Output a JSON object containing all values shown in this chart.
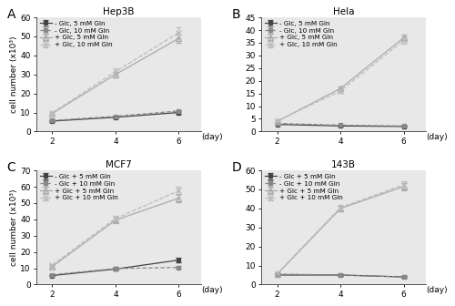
{
  "subplots": [
    {
      "label": "A",
      "title": "Hep3B",
      "ylim": [
        0,
        60
      ],
      "yticks": [
        0,
        10,
        20,
        30,
        40,
        50,
        60
      ],
      "series": [
        {
          "label": "- Glc, 5 mM Gln",
          "marker": "s",
          "color": "#444444",
          "linestyle": "-",
          "x": [
            2,
            4,
            6
          ],
          "y": [
            5.5,
            7.5,
            10.0
          ],
          "yerr": [
            0.4,
            0.5,
            0.7
          ]
        },
        {
          "label": "- Glc, 10 mM Gln",
          "marker": "s",
          "color": "#888888",
          "linestyle": "--",
          "x": [
            2,
            4,
            6
          ],
          "y": [
            5.8,
            8.0,
            10.8
          ],
          "yerr": [
            0.4,
            0.5,
            0.5
          ]
        },
        {
          "label": "+ Glc, 5 mM Gln",
          "marker": "^",
          "color": "#aaaaaa",
          "linestyle": "-",
          "x": [
            2,
            4,
            6
          ],
          "y": [
            9.5,
            30.0,
            49.0
          ],
          "yerr": [
            0.6,
            1.5,
            2.5
          ]
        },
        {
          "label": "+ Glc, 10 mM Gln",
          "marker": "x",
          "color": "#bbbbbb",
          "linestyle": "--",
          "x": [
            2,
            4,
            6
          ],
          "y": [
            9.8,
            31.5,
            52.0
          ],
          "yerr": [
            0.6,
            1.5,
            3.0
          ]
        }
      ]
    },
    {
      "label": "B",
      "title": "Hela",
      "ylim": [
        0,
        45
      ],
      "yticks": [
        0,
        5,
        10,
        15,
        20,
        25,
        30,
        35,
        40,
        45
      ],
      "series": [
        {
          "label": "- Glc, 5 mM Gln",
          "marker": "s",
          "color": "#444444",
          "linestyle": "-",
          "x": [
            2,
            4,
            6
          ],
          "y": [
            2.8,
            2.2,
            2.0
          ],
          "yerr": [
            0.2,
            0.2,
            0.2
          ]
        },
        {
          "label": "- Glc, 10 mM Gln",
          "marker": "s",
          "color": "#888888",
          "linestyle": "--",
          "x": [
            2,
            4,
            6
          ],
          "y": [
            3.2,
            2.5,
            2.2
          ],
          "yerr": [
            0.2,
            0.2,
            0.2
          ]
        },
        {
          "label": "+ Glc, 5 mM Gln",
          "marker": "^",
          "color": "#aaaaaa",
          "linestyle": "-",
          "x": [
            2,
            4,
            6
          ],
          "y": [
            4.0,
            17.0,
            37.0
          ],
          "yerr": [
            0.3,
            0.8,
            1.2
          ]
        },
        {
          "label": "+ Glc, 10 mM Gln",
          "marker": "x",
          "color": "#bbbbbb",
          "linestyle": "--",
          "x": [
            2,
            4,
            6
          ],
          "y": [
            4.2,
            16.0,
            36.0
          ],
          "yerr": [
            0.3,
            0.8,
            1.5
          ]
        }
      ]
    },
    {
      "label": "C",
      "title": "MCF7",
      "ylim": [
        0,
        70
      ],
      "yticks": [
        0,
        10,
        20,
        30,
        40,
        50,
        60,
        70
      ],
      "series": [
        {
          "label": "- Glc + 5 mM Gln",
          "marker": "s",
          "color": "#444444",
          "linestyle": "-",
          "x": [
            2,
            4,
            6
          ],
          "y": [
            5.5,
            9.5,
            15.0
          ],
          "yerr": [
            0.5,
            0.8,
            1.2
          ]
        },
        {
          "label": "- Glc + 10 mM Gln",
          "marker": "s",
          "color": "#888888",
          "linestyle": "--",
          "x": [
            2,
            4,
            6
          ],
          "y": [
            6.0,
            9.8,
            10.5
          ],
          "yerr": [
            0.5,
            0.8,
            0.8
          ]
        },
        {
          "label": "+ Glc + 5 mM Gln",
          "marker": "^",
          "color": "#aaaaaa",
          "linestyle": "-",
          "x": [
            2,
            4,
            6
          ],
          "y": [
            11.0,
            39.5,
            53.0
          ],
          "yerr": [
            0.8,
            1.5,
            2.5
          ]
        },
        {
          "label": "+ Glc + 10 mM Gln",
          "marker": "x",
          "color": "#bbbbbb",
          "linestyle": "--",
          "x": [
            2,
            4,
            6
          ],
          "y": [
            12.0,
            40.5,
            57.5
          ],
          "yerr": [
            0.8,
            1.5,
            2.5
          ]
        }
      ]
    },
    {
      "label": "D",
      "title": "143B",
      "ylim": [
        0,
        60
      ],
      "yticks": [
        0,
        10,
        20,
        30,
        40,
        50,
        60
      ],
      "series": [
        {
          "label": "- Glc + 5 mM Gln",
          "marker": "s",
          "color": "#444444",
          "linestyle": "-",
          "x": [
            2,
            4,
            6
          ],
          "y": [
            5.0,
            5.0,
            4.0
          ],
          "yerr": [
            0.3,
            0.4,
            0.4
          ]
        },
        {
          "label": "- Glc + 10 mM Gln",
          "marker": "s",
          "color": "#888888",
          "linestyle": "--",
          "x": [
            2,
            4,
            6
          ],
          "y": [
            5.5,
            5.0,
            4.0
          ],
          "yerr": [
            0.3,
            0.4,
            0.4
          ]
        },
        {
          "label": "+ Glc + 5 mM Gln",
          "marker": "^",
          "color": "#aaaaaa",
          "linestyle": "-",
          "x": [
            2,
            4,
            6
          ],
          "y": [
            5.5,
            40.0,
            51.5
          ],
          "yerr": [
            0.5,
            1.5,
            1.8
          ]
        },
        {
          "label": "+ Glc + 10 mM Gln",
          "marker": "x",
          "color": "#bbbbbb",
          "linestyle": "--",
          "x": [
            2,
            4,
            6
          ],
          "y": [
            5.8,
            40.5,
            52.5
          ],
          "yerr": [
            0.5,
            1.5,
            1.8
          ]
        }
      ]
    }
  ],
  "ylabel": "cell number (x10³)",
  "xlabel": "(day)",
  "xticks": [
    2,
    4,
    6
  ],
  "bg_color": "#e8e8e8",
  "fontsize": 6.5,
  "title_fontsize": 7.5,
  "label_fontsize": 10
}
